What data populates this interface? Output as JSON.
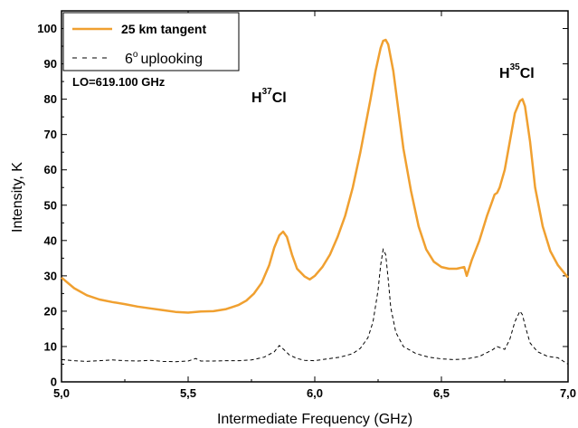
{
  "chart_data": {
    "type": "line",
    "xlabel": "Intermediate Frequency (GHz)",
    "ylabel": "Intensity, K",
    "xlim": [
      5.0,
      7.0
    ],
    "ylim": [
      0,
      105
    ],
    "x_ticks": [
      "5,0",
      "5,5",
      "6,0",
      "6,5",
      "7,0"
    ],
    "x_tick_values": [
      5.0,
      5.5,
      6.0,
      6.5,
      7.0
    ],
    "y_ticks": [
      0,
      10,
      20,
      30,
      40,
      50,
      60,
      70,
      80,
      90,
      100
    ],
    "grid": false,
    "legend_placement": "top-left",
    "annotations": {
      "lo": "LO=619.100 GHz",
      "h37_base": "H",
      "h37_sup": "37",
      "h37_tail": "Cl",
      "h35_base": "H",
      "h35_sup": "35",
      "h35_tail": "Cl"
    },
    "legend": {
      "s1": "25 km tangent",
      "s2_sup": "o",
      "s2_pre": "6",
      "s2_post": "uplooking"
    },
    "series": [
      {
        "name": "25 km tangent",
        "color": "#f0a030",
        "style": "solid",
        "x": [
          5.0,
          5.05,
          5.1,
          5.15,
          5.2,
          5.25,
          5.3,
          5.35,
          5.4,
          5.45,
          5.5,
          5.55,
          5.6,
          5.65,
          5.7,
          5.73,
          5.76,
          5.79,
          5.82,
          5.84,
          5.86,
          5.875,
          5.89,
          5.91,
          5.93,
          5.96,
          5.98,
          6.0,
          6.03,
          6.06,
          6.09,
          6.12,
          6.15,
          6.18,
          6.2,
          6.22,
          6.24,
          6.26,
          6.27,
          6.28,
          6.29,
          6.31,
          6.33,
          6.35,
          6.38,
          6.41,
          6.44,
          6.47,
          6.5,
          6.53,
          6.56,
          6.59,
          6.6,
          6.62,
          6.65,
          6.68,
          6.7,
          6.71,
          6.72,
          6.73,
          6.75,
          6.77,
          6.79,
          6.81,
          6.82,
          6.83,
          6.85,
          6.87,
          6.9,
          6.93,
          6.96,
          7.0
        ],
        "y": [
          29.5,
          26.5,
          24.5,
          23.3,
          22.6,
          22.0,
          21.3,
          20.8,
          20.3,
          19.8,
          19.6,
          19.9,
          20.0,
          20.6,
          21.8,
          23.0,
          25.0,
          28.0,
          33.0,
          38.0,
          41.5,
          42.5,
          41.0,
          36.0,
          32.0,
          29.8,
          29.0,
          30.0,
          32.5,
          36.0,
          41.0,
          47.0,
          55.0,
          65.0,
          72.5,
          80.0,
          88.0,
          94.5,
          96.5,
          96.8,
          95.5,
          88.0,
          77.0,
          66.0,
          54.0,
          44.0,
          37.5,
          34.0,
          32.5,
          32.0,
          32.0,
          32.5,
          30.0,
          34.5,
          40.0,
          47.0,
          51.0,
          53.0,
          53.5,
          55.0,
          60.0,
          68.0,
          76.0,
          79.5,
          80.0,
          78.0,
          68.0,
          55.0,
          44.0,
          37.0,
          33.0,
          29.5
        ]
      },
      {
        "name": "6° uplooking",
        "color": "#000000",
        "style": "dashed",
        "x": [
          5.0,
          5.05,
          5.1,
          5.15,
          5.2,
          5.25,
          5.3,
          5.35,
          5.4,
          5.45,
          5.5,
          5.53,
          5.55,
          5.6,
          5.65,
          5.7,
          5.75,
          5.8,
          5.84,
          5.86,
          5.88,
          5.9,
          5.93,
          5.96,
          6.0,
          6.05,
          6.1,
          6.15,
          6.18,
          6.21,
          6.23,
          6.25,
          6.26,
          6.27,
          6.28,
          6.29,
          6.3,
          6.32,
          6.35,
          6.4,
          6.45,
          6.5,
          6.55,
          6.6,
          6.65,
          6.7,
          6.72,
          6.75,
          6.77,
          6.79,
          6.81,
          6.82,
          6.83,
          6.85,
          6.88,
          6.92,
          6.96,
          7.0
        ],
        "y": [
          6.3,
          6.0,
          5.8,
          6.0,
          6.2,
          6.0,
          5.9,
          6.1,
          5.8,
          5.7,
          5.9,
          6.6,
          5.9,
          5.9,
          6.0,
          6.0,
          6.2,
          7.0,
          8.5,
          10.3,
          9.0,
          7.6,
          6.6,
          6.1,
          6.0,
          6.5,
          7.0,
          8.0,
          9.5,
          12.5,
          17.0,
          26.0,
          33.0,
          37.5,
          36.0,
          29.0,
          21.0,
          14.0,
          10.0,
          8.0,
          7.0,
          6.5,
          6.3,
          6.5,
          7.2,
          9.0,
          10.0,
          9.2,
          12.0,
          17.0,
          20.0,
          19.0,
          16.0,
          11.0,
          8.5,
          7.2,
          6.8,
          5.0
        ]
      }
    ]
  }
}
